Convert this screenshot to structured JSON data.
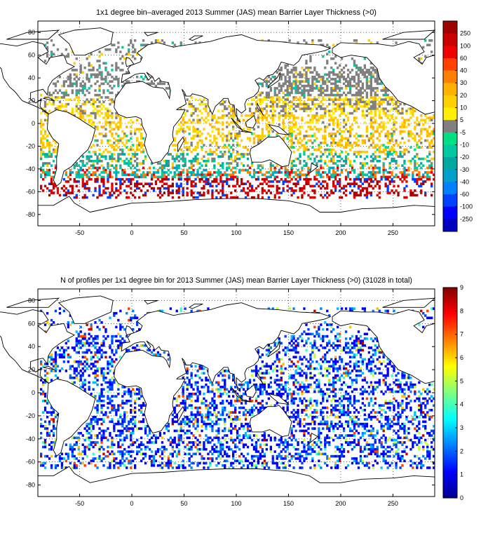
{
  "figures": [
    {
      "title": "1x1 degree bin–averaged 2013 Summer (JAS) mean Barrier Layer Thickness (>0)",
      "x_ticks": [
        "-50",
        "0",
        "50",
        "100",
        "150",
        "200",
        "250"
      ],
      "y_ticks": [
        "80",
        "60",
        "40",
        "20",
        "0",
        "-20",
        "-40",
        "-60",
        "-80"
      ],
      "colorbar": {
        "labels": [
          "250",
          "100",
          "60",
          "40",
          "30",
          "20",
          "10",
          "5",
          "-5",
          "-10",
          "-20",
          "-30",
          "-40",
          "-60",
          "-100",
          "-250"
        ],
        "colors": [
          "#a00000",
          "#c80000",
          "#f00000",
          "#ff4000",
          "#ff8000",
          "#ffb000",
          "#ffd000",
          "#fff000",
          "#808080",
          "#00e080",
          "#00c8a0",
          "#00a8a0",
          "#00a0c8",
          "#0080ff",
          "#0040ff",
          "#0000ff",
          "#0000c0"
        ]
      }
    },
    {
      "title": "N of profiles per 1x1 degree bin for 2013 Summer (JAS) mean Barrier Layer Thickness (>0) (31028 in total)",
      "x_ticks": [
        "-50",
        "0",
        "50",
        "100",
        "150",
        "200",
        "250"
      ],
      "y_ticks": [
        "80",
        "60",
        "40",
        "20",
        "0",
        "-20",
        "-40",
        "-60",
        "-80"
      ],
      "colorbar": {
        "labels": [
          "9",
          "8",
          "7",
          "6",
          "5",
          "4",
          "3",
          "2",
          "1",
          "0"
        ]
      }
    }
  ]
}
